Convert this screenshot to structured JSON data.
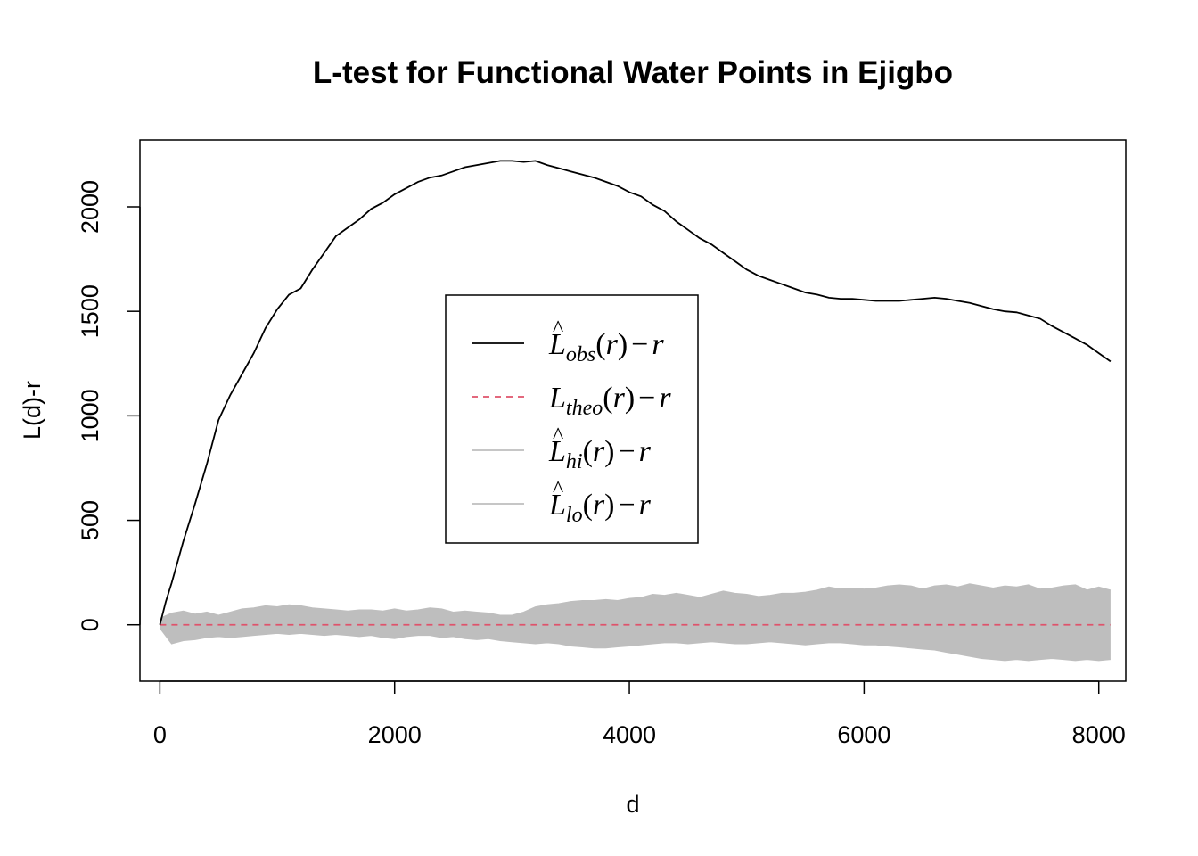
{
  "chart_data": {
    "type": "line",
    "title": "L-test for Functional Water Points in Ejigbo",
    "xlabel": "d",
    "ylabel": "L(d)-r",
    "xlim": [
      -170,
      8230
    ],
    "ylim": [
      -270,
      2320
    ],
    "xticks": [
      0,
      2000,
      4000,
      6000,
      8000
    ],
    "yticks": [
      0,
      500,
      1000,
      1500,
      2000
    ],
    "grid": false,
    "legend_position": "center",
    "colors": {
      "obs": "#000000",
      "theo": "#DF536B",
      "envelope": "#BEBEBE"
    },
    "legend": [
      {
        "main": "L",
        "hat": true,
        "sub": "obs",
        "tail": "(r)",
        "minus": "−",
        "r": "r",
        "line": "solid",
        "color": "#000000"
      },
      {
        "main": "L",
        "hat": false,
        "sub": "theo",
        "tail": "(r)",
        "minus": "−",
        "r": "r",
        "line": "dashed",
        "color": "#DF536B"
      },
      {
        "main": "L",
        "hat": true,
        "sub": "hi",
        "tail": "(r)",
        "minus": "−",
        "r": "r",
        "line": "solid",
        "color": "#BEBEBE"
      },
      {
        "main": "L",
        "hat": true,
        "sub": "lo",
        "tail": "(r)",
        "minus": "−",
        "r": "r",
        "line": "solid",
        "color": "#BEBEBE"
      }
    ],
    "series": [
      {
        "name": "obs",
        "x": [
          0,
          50,
          100,
          200,
          300,
          400,
          500,
          600,
          700,
          800,
          900,
          1000,
          1100,
          1200,
          1300,
          1400,
          1500,
          1600,
          1700,
          1800,
          1900,
          2000,
          2100,
          2200,
          2300,
          2400,
          2500,
          2600,
          2700,
          2800,
          2900,
          3000,
          3100,
          3200,
          3300,
          3400,
          3500,
          3600,
          3700,
          3800,
          3900,
          4000,
          4100,
          4200,
          4300,
          4400,
          4500,
          4600,
          4700,
          4800,
          4900,
          5000,
          5100,
          5200,
          5300,
          5400,
          5500,
          5600,
          5700,
          5800,
          5900,
          6000,
          6100,
          6200,
          6300,
          6400,
          6500,
          6600,
          6700,
          6800,
          6900,
          7000,
          7100,
          7200,
          7300,
          7400,
          7500,
          7600,
          7700,
          7800,
          7900,
          8000,
          8100
        ],
        "y": [
          0,
          110,
          200,
          400,
          580,
          770,
          980,
          1100,
          1200,
          1300,
          1420,
          1510,
          1580,
          1610,
          1700,
          1780,
          1860,
          1900,
          1940,
          1990,
          2020,
          2060,
          2090,
          2120,
          2140,
          2150,
          2170,
          2190,
          2200,
          2210,
          2220,
          2220,
          2215,
          2220,
          2200,
          2185,
          2170,
          2155,
          2140,
          2120,
          2100,
          2070,
          2050,
          2010,
          1980,
          1930,
          1890,
          1850,
          1820,
          1780,
          1740,
          1700,
          1670,
          1650,
          1630,
          1610,
          1590,
          1580,
          1565,
          1560,
          1560,
          1555,
          1550,
          1550,
          1550,
          1555,
          1560,
          1565,
          1560,
          1550,
          1540,
          1525,
          1510,
          1500,
          1495,
          1480,
          1465,
          1430,
          1400,
          1370,
          1340,
          1300,
          1260
        ]
      },
      {
        "name": "theo",
        "x": [
          0,
          8100
        ],
        "y": [
          0,
          0
        ]
      },
      {
        "name": "hi",
        "x": [
          0,
          100,
          200,
          300,
          400,
          500,
          600,
          700,
          800,
          900,
          1000,
          1100,
          1200,
          1300,
          1400,
          1500,
          1600,
          1700,
          1800,
          1900,
          2000,
          2100,
          2200,
          2300,
          2400,
          2500,
          2600,
          2700,
          2800,
          2900,
          3000,
          3100,
          3200,
          3300,
          3400,
          3500,
          3600,
          3700,
          3800,
          3900,
          4000,
          4100,
          4200,
          4300,
          4400,
          4500,
          4600,
          4700,
          4800,
          4900,
          5000,
          5100,
          5200,
          5300,
          5400,
          5500,
          5600,
          5700,
          5800,
          5900,
          6000,
          6100,
          6200,
          6300,
          6400,
          6500,
          6600,
          6700,
          6800,
          6900,
          7000,
          7100,
          7200,
          7300,
          7400,
          7500,
          7600,
          7700,
          7800,
          7900,
          8000,
          8100
        ],
        "y": [
          30,
          55,
          65,
          50,
          60,
          45,
          60,
          75,
          80,
          90,
          85,
          95,
          90,
          80,
          75,
          70,
          65,
          70,
          70,
          65,
          75,
          65,
          70,
          80,
          75,
          60,
          65,
          60,
          55,
          45,
          45,
          60,
          85,
          95,
          100,
          110,
          115,
          115,
          120,
          115,
          125,
          130,
          145,
          140,
          150,
          140,
          130,
          145,
          160,
          150,
          145,
          135,
          140,
          150,
          150,
          155,
          165,
          180,
          170,
          175,
          170,
          175,
          185,
          190,
          185,
          170,
          185,
          190,
          180,
          195,
          185,
          175,
          185,
          180,
          190,
          170,
          175,
          185,
          190,
          165,
          180,
          165
        ]
      },
      {
        "name": "lo",
        "x": [
          0,
          100,
          200,
          300,
          400,
          500,
          600,
          700,
          800,
          900,
          1000,
          1100,
          1200,
          1300,
          1400,
          1500,
          1600,
          1700,
          1800,
          1900,
          2000,
          2100,
          2200,
          2300,
          2400,
          2500,
          2600,
          2700,
          2800,
          2900,
          3000,
          3100,
          3200,
          3300,
          3400,
          3500,
          3600,
          3700,
          3800,
          3900,
          4000,
          4100,
          4200,
          4300,
          4400,
          4500,
          4600,
          4700,
          4800,
          4900,
          5000,
          5100,
          5200,
          5300,
          5400,
          5500,
          5600,
          5700,
          5800,
          5900,
          6000,
          6100,
          6200,
          6300,
          6400,
          6500,
          6600,
          6700,
          6800,
          6900,
          7000,
          7100,
          7200,
          7300,
          7400,
          7500,
          7600,
          7700,
          7800,
          7900,
          8000,
          8100
        ],
        "y": [
          -15,
          -90,
          -75,
          -70,
          -60,
          -55,
          -60,
          -55,
          -50,
          -45,
          -40,
          -45,
          -40,
          -45,
          -50,
          -45,
          -50,
          -55,
          -50,
          -60,
          -65,
          -55,
          -50,
          -50,
          -60,
          -55,
          -65,
          -70,
          -65,
          -75,
          -80,
          -85,
          -90,
          -85,
          -90,
          -100,
          -105,
          -110,
          -110,
          -105,
          -100,
          -95,
          -90,
          -85,
          -85,
          -90,
          -85,
          -80,
          -85,
          -90,
          -90,
          -85,
          -80,
          -85,
          -90,
          -95,
          -90,
          -85,
          -85,
          -90,
          -95,
          -95,
          -100,
          -105,
          -110,
          -115,
          -120,
          -130,
          -140,
          -150,
          -160,
          -165,
          -170,
          -165,
          -170,
          -165,
          -160,
          -165,
          -170,
          -165,
          -170,
          -165
        ]
      }
    ]
  }
}
